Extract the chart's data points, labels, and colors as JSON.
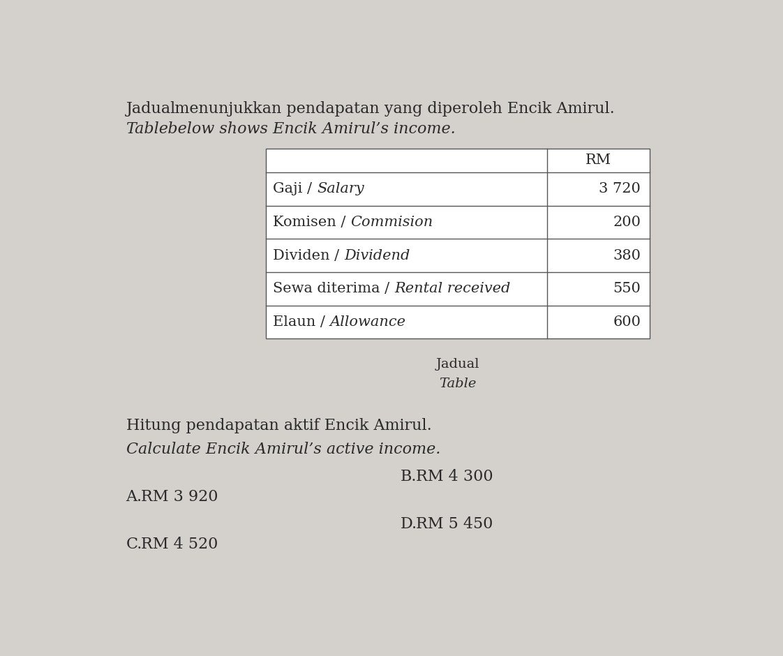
{
  "bg_color": "#d4d0cc",
  "title_line1_normal": "Jadual",
  "title_line1_rest": "   menunjukkan pendapatan yang diperoleh Encik Amirul.",
  "title_line2_italic": "Table",
  "title_line2_rest": "   below shows Encik Amirul’s income.",
  "table_header": "RM",
  "table_rows": [
    [
      "Gaji / ",
      "Salary",
      "3 720"
    ],
    [
      "Komisen / ",
      "Commision",
      "200"
    ],
    [
      "Dividen / ",
      "Dividend",
      "380"
    ],
    [
      "Sewa diterima / ",
      "Rental received",
      "550"
    ],
    [
      "Elaun / ",
      "Allowance",
      "600"
    ]
  ],
  "caption_line1": "Jadual",
  "caption_line2": "Table",
  "question_line1": "Hitung pendapatan aktif Encik Amirul.",
  "question_line2": "Calculate Encik Amirul’s active income.",
  "ans_A_label": "A.",
  "ans_A_val": "    RM 3 920",
  "ans_B_label": "B.",
  "ans_B_val": "    RM 4 300",
  "ans_C_label": "C.",
  "ans_C_val": "    RM 4 520",
  "ans_D_label": "D.",
  "ans_D_val": "    RM 5 450",
  "text_color": "#2a2a2a",
  "table_border_color": "#555555",
  "font_size_title": 16,
  "font_size_table": 15,
  "font_size_caption": 14,
  "font_size_question": 16,
  "font_size_answer": 16
}
